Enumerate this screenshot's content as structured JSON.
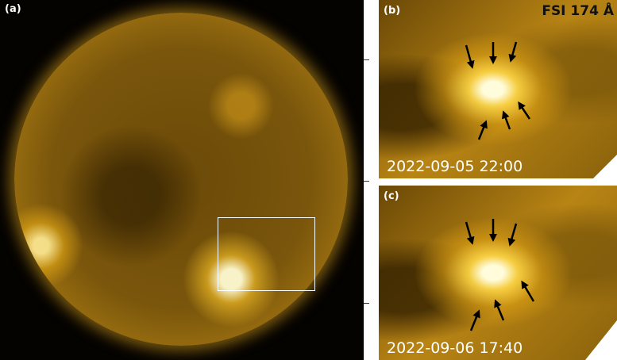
{
  "panels": {
    "a": {
      "label": "(a)"
    },
    "b": {
      "label": "(b)",
      "instrument": "FSI 174 Å",
      "timestamp": "2022-09-05 22:00"
    },
    "c": {
      "label": "(c)",
      "timestamp": "2022-09-06 17:40"
    }
  },
  "colors": {
    "solar": "#e0a820",
    "background": "#050300",
    "arrows": "#000000"
  }
}
